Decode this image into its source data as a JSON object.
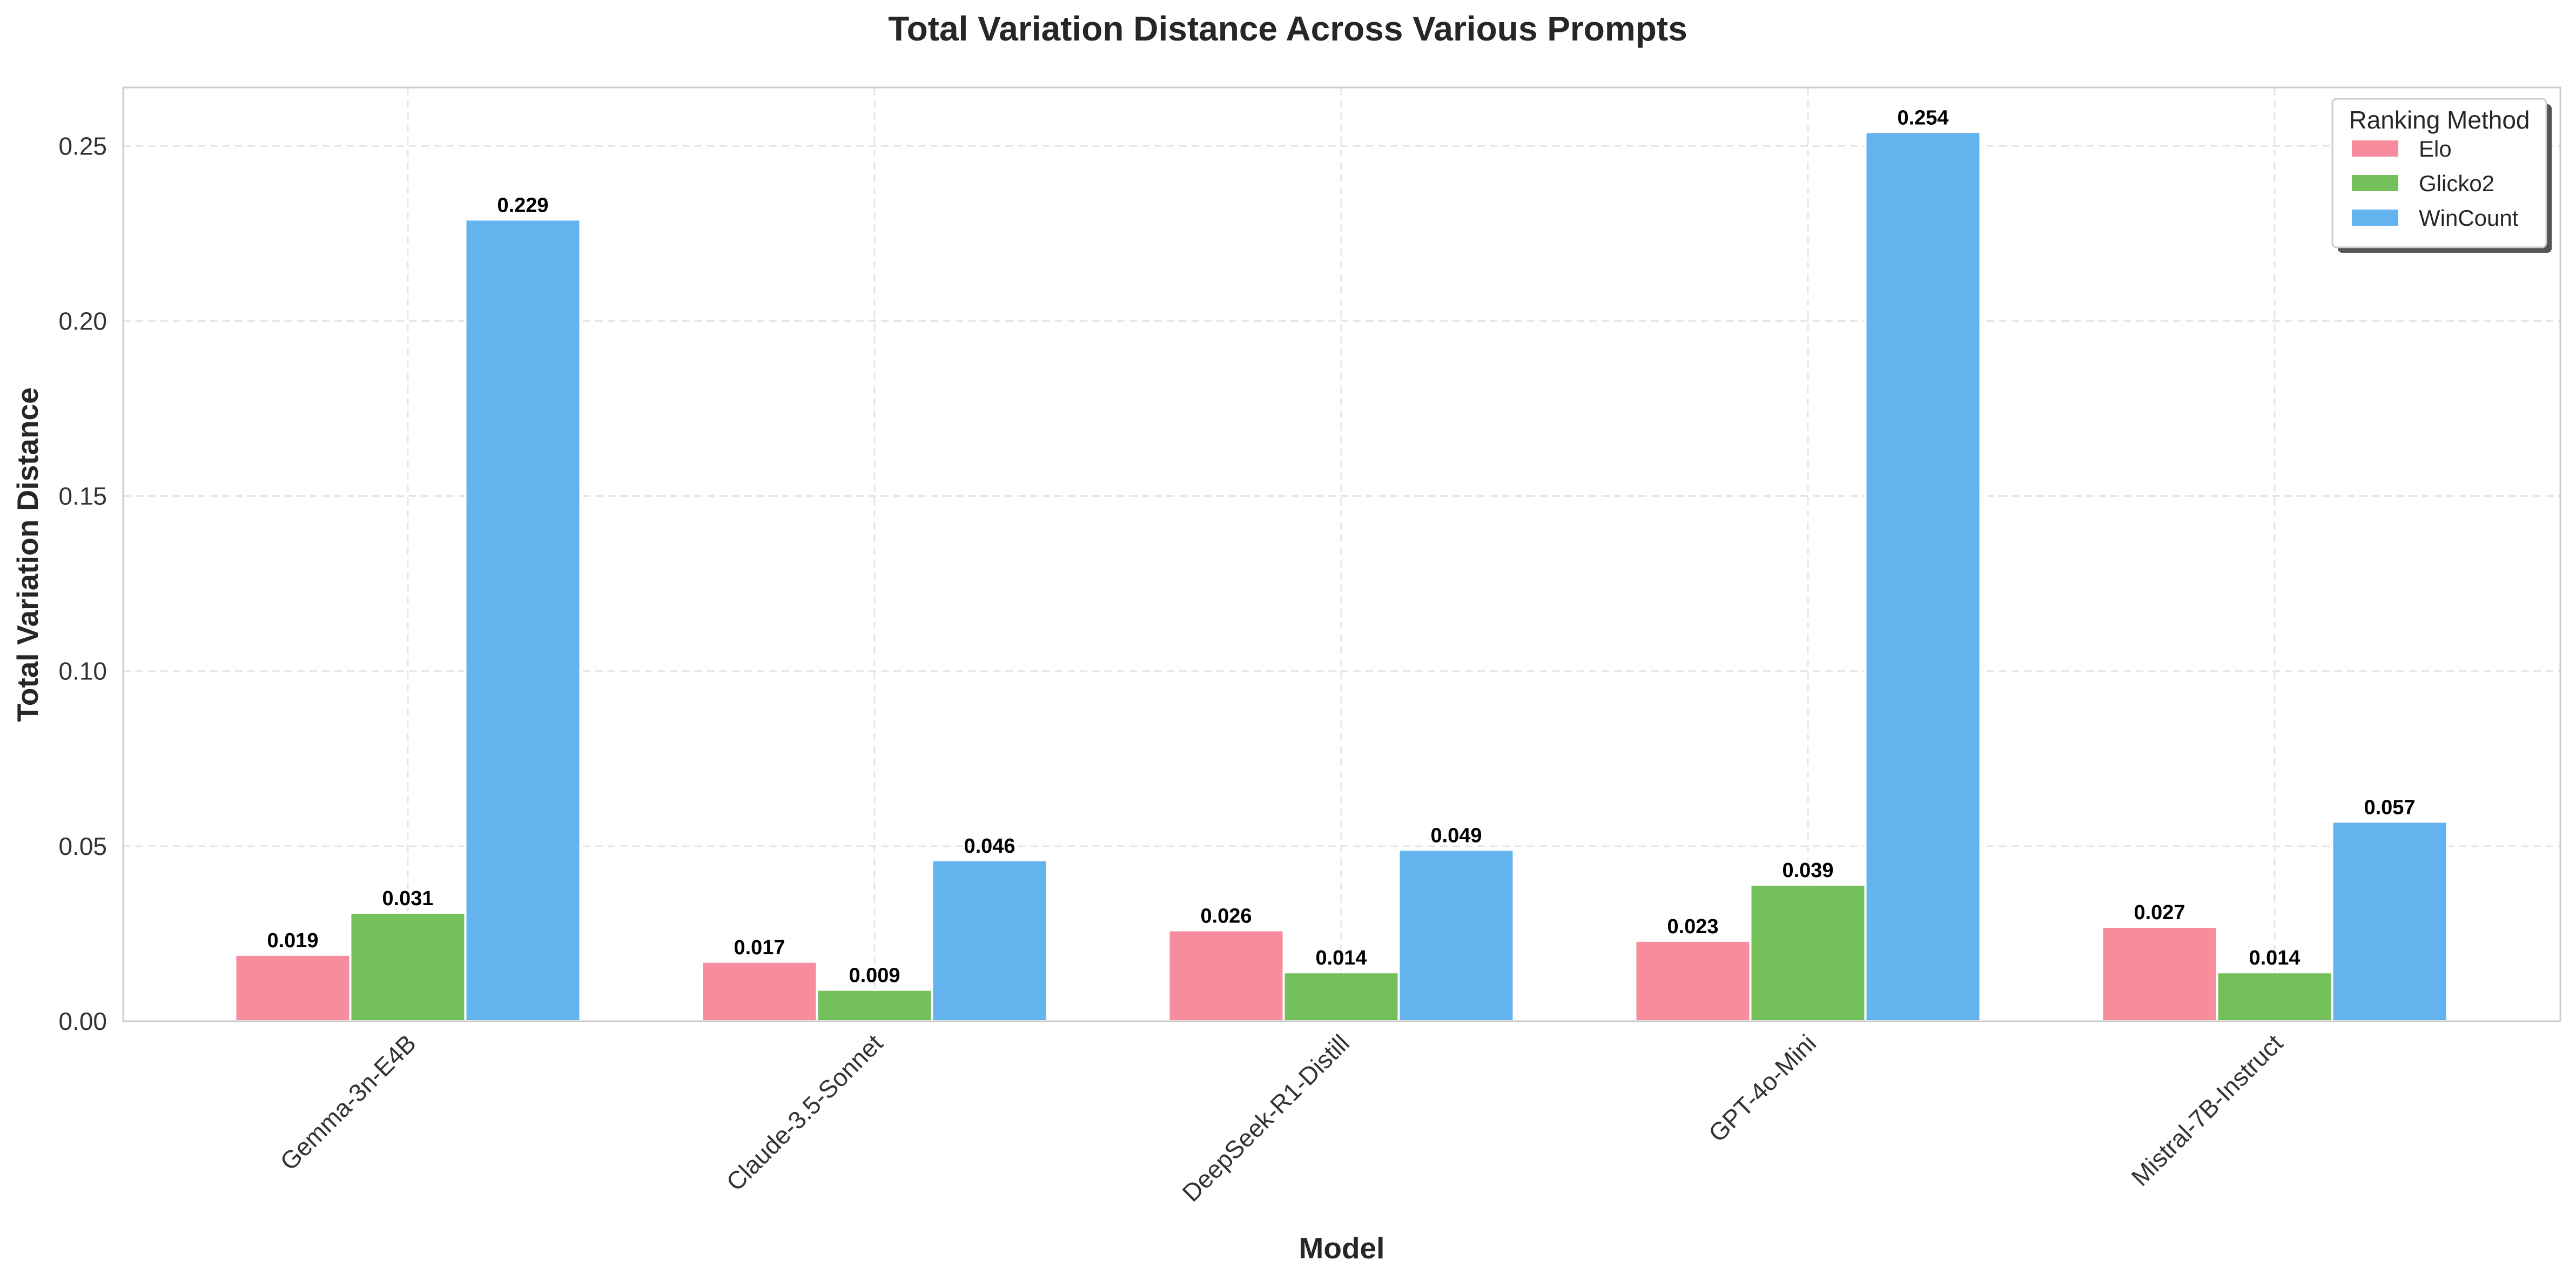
{
  "chart_data": {
    "type": "bar",
    "title": "Total Variation Distance Across Various Prompts",
    "xlabel": "Model",
    "ylabel": "Total Variation Distance",
    "categories": [
      "Gemma-3n-E4B",
      "Claude-3.5-Sonnet",
      "DeepSeek-R1-Distill",
      "GPT-4o-Mini",
      "Mistral-7B-Instruct"
    ],
    "series": [
      {
        "name": "Elo",
        "color": "#f68c9c",
        "values": [
          0.019,
          0.017,
          0.026,
          0.023,
          0.027
        ]
      },
      {
        "name": "Glicko2",
        "color": "#74c05b",
        "values": [
          0.031,
          0.009,
          0.014,
          0.039,
          0.014
        ]
      },
      {
        "name": "WinCount",
        "color": "#63b4ee",
        "values": [
          0.229,
          0.046,
          0.049,
          0.254,
          0.057
        ]
      }
    ],
    "value_labels": [
      [
        "0.019",
        "0.017",
        "0.026",
        "0.023",
        "0.027"
      ],
      [
        "0.031",
        "0.009",
        "0.014",
        "0.039",
        "0.014"
      ],
      [
        "0.229",
        "0.046",
        "0.049",
        "0.254",
        "0.057"
      ]
    ],
    "yticks": [
      0.0,
      0.05,
      0.1,
      0.15,
      0.2,
      0.25
    ],
    "ytick_labels": [
      "0.00",
      "0.05",
      "0.10",
      "0.15",
      "0.20",
      "0.25"
    ],
    "ylim": [
      0,
      0.2667
    ],
    "grid": true,
    "legend": {
      "title": "Ranking Method",
      "position": "top-right"
    }
  }
}
